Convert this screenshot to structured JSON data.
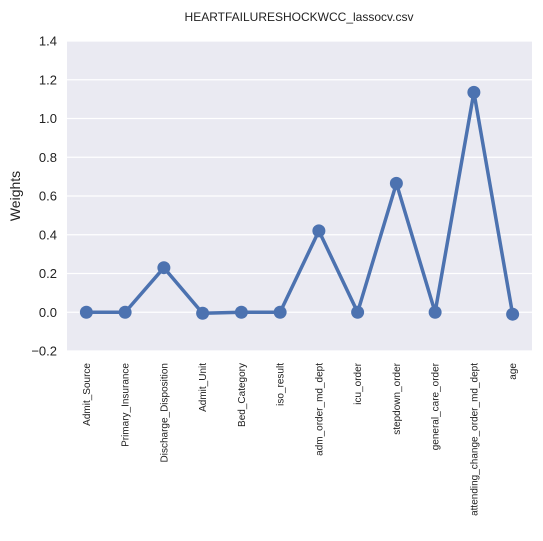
{
  "chart_data": {
    "type": "line",
    "title": "HEARTFAILURESHOCKWCC_lassocv.csv",
    "xlabel": "",
    "ylabel": "Weights",
    "categories": [
      "Admit_Source",
      "Primary_Insurance",
      "Discharge_Disposition",
      "Admit_Unit",
      "Bed_Category",
      "iso_result",
      "adm_order_md_dept",
      "icu_order",
      "stepdown_order",
      "general_care_order",
      "attending_change_order_md_dept",
      "age"
    ],
    "values": [
      0.0,
      0.0,
      0.23,
      -0.005,
      0.0,
      0.0,
      0.42,
      0.0,
      0.665,
      0.0,
      1.135,
      -0.01
    ],
    "ylim": [
      -0.2,
      1.4
    ],
    "yticks": [
      -0.2,
      0.0,
      0.2,
      0.4,
      0.6,
      0.8,
      1.0,
      1.2,
      1.4
    ],
    "ytick_labels": [
      "−0.2",
      "0.0",
      "0.2",
      "0.4",
      "0.6",
      "0.8",
      "1.0",
      "1.2",
      "1.4"
    ],
    "grid": true,
    "legend": "none",
    "colors": {
      "line": "#4c72b0",
      "background": "#eaeaf2",
      "grid": "#ffffff"
    }
  }
}
